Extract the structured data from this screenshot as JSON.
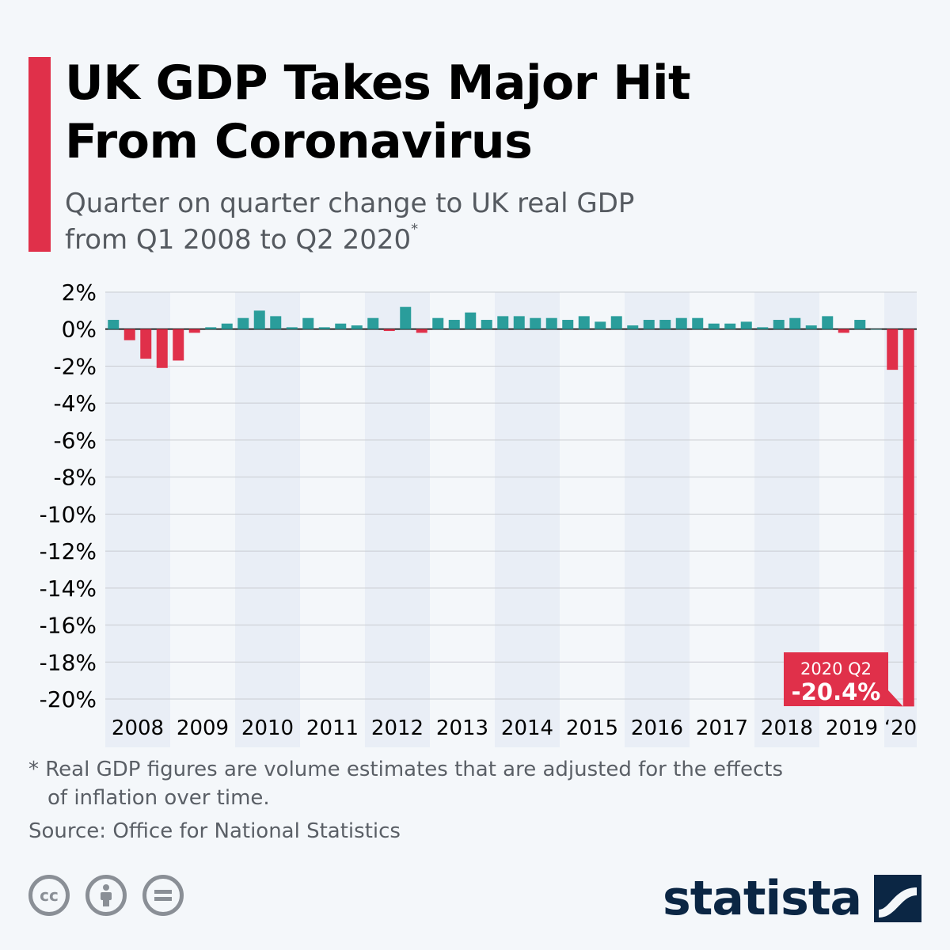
{
  "header": {
    "title_line1": "UK GDP Takes Major Hit",
    "title_line2": "From Coronavirus",
    "subtitle_line1": "Quarter on quarter change to UK real GDP",
    "subtitle_line2": "from Q1 2008 to Q2 2020",
    "subtitle_mark": "*"
  },
  "chart_data": {
    "type": "bar",
    "ylim": [
      -20.4,
      2
    ],
    "yticks": [
      "2%",
      "0%",
      "-2%",
      "-4%",
      "-6%",
      "-8%",
      "-10%",
      "-12%",
      "-14%",
      "-16%",
      "-18%",
      "-20%"
    ],
    "ytick_values": [
      2,
      0,
      -2,
      -4,
      -6,
      -8,
      -10,
      -12,
      -14,
      -16,
      -18,
      -20
    ],
    "year_labels": [
      "2008",
      "2009",
      "2010",
      "2011",
      "2012",
      "2013",
      "2014",
      "2015",
      "2016",
      "2017",
      "2018",
      "2019",
      "‘20"
    ],
    "categories": [
      "2008 Q1",
      "2008 Q2",
      "2008 Q3",
      "2008 Q4",
      "2009 Q1",
      "2009 Q2",
      "2009 Q3",
      "2009 Q4",
      "2010 Q1",
      "2010 Q2",
      "2010 Q3",
      "2010 Q4",
      "2011 Q1",
      "2011 Q2",
      "2011 Q3",
      "2011 Q4",
      "2012 Q1",
      "2012 Q2",
      "2012 Q3",
      "2012 Q4",
      "2013 Q1",
      "2013 Q2",
      "2013 Q3",
      "2013 Q4",
      "2014 Q1",
      "2014 Q2",
      "2014 Q3",
      "2014 Q4",
      "2015 Q1",
      "2015 Q2",
      "2015 Q3",
      "2015 Q4",
      "2016 Q1",
      "2016 Q2",
      "2016 Q3",
      "2016 Q4",
      "2017 Q1",
      "2017 Q2",
      "2017 Q3",
      "2017 Q4",
      "2018 Q1",
      "2018 Q2",
      "2018 Q3",
      "2018 Q4",
      "2019 Q1",
      "2019 Q2",
      "2019 Q3",
      "2019 Q4",
      "2020 Q1",
      "2020 Q2"
    ],
    "values": [
      0.5,
      -0.6,
      -1.6,
      -2.1,
      -1.7,
      -0.2,
      0.1,
      0.3,
      0.6,
      1.0,
      0.7,
      0.1,
      0.6,
      0.1,
      0.3,
      0.2,
      0.6,
      -0.1,
      1.2,
      -0.2,
      0.6,
      0.5,
      0.9,
      0.5,
      0.7,
      0.7,
      0.6,
      0.6,
      0.5,
      0.7,
      0.4,
      0.7,
      0.2,
      0.5,
      0.5,
      0.6,
      0.6,
      0.3,
      0.3,
      0.4,
      0.1,
      0.5,
      0.6,
      0.2,
      0.7,
      -0.2,
      0.5,
      0.0,
      -2.2,
      -20.4
    ],
    "colors": {
      "positive": "#2a9d9b",
      "negative": "#e0304a",
      "band": "#e9eef6",
      "grid": "#c9ccd1"
    },
    "annotation": {
      "label": "2020 Q2",
      "value": "-20.4%"
    }
  },
  "footer": {
    "footnote_line1": "* Real GDP figures are volume estimates that are adjusted for the effects",
    "footnote_line2": "of inflation over time.",
    "source": "Source: Office for National Statistics",
    "logo_text": "statista",
    "cc_icons": [
      "creative-commons-icon",
      "attribution-icon",
      "no-derivatives-icon"
    ]
  }
}
